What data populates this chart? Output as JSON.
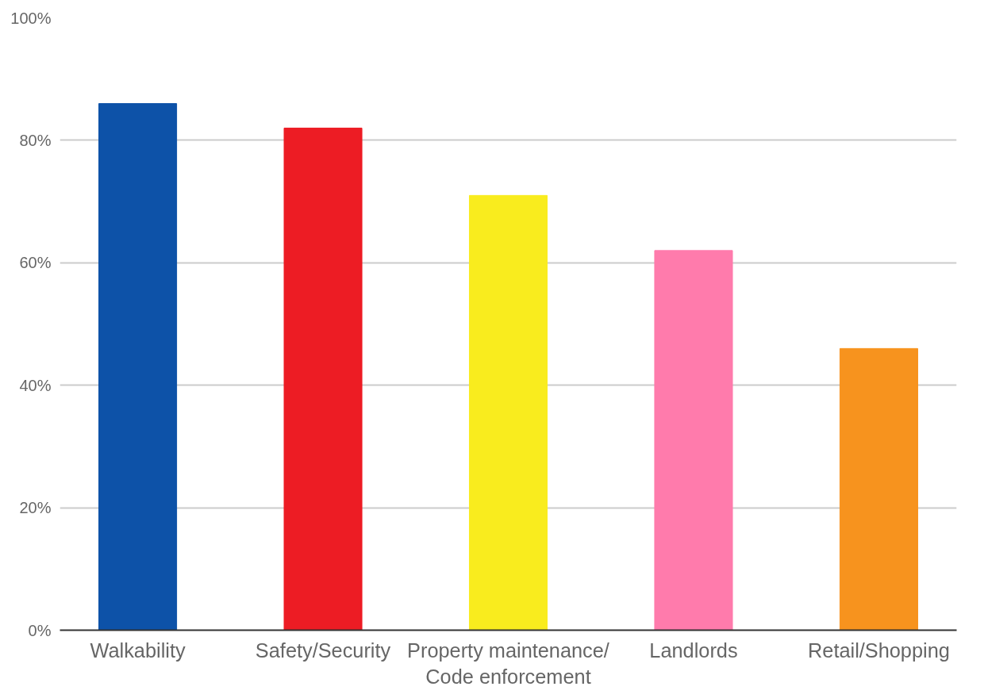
{
  "chart_data": {
    "type": "bar",
    "categories": [
      "Walkability",
      "Safety/Security",
      "Property maintenance/\nCode enforcement",
      "Landlords",
      "Retail/Shopping"
    ],
    "values": [
      86,
      82,
      71,
      62,
      46
    ],
    "colors": [
      "#0d52a8",
      "#ed1c24",
      "#f9ec1e",
      "#ff7bac",
      "#f7931e"
    ],
    "ylim": [
      0,
      100
    ],
    "yticks": [
      {
        "value": 0,
        "label": "0%"
      },
      {
        "value": 20,
        "label": "20%"
      },
      {
        "value": 40,
        "label": "40%"
      },
      {
        "value": 60,
        "label": "60%"
      },
      {
        "value": 80,
        "label": "80%"
      },
      {
        "value": 100,
        "label": "100%"
      }
    ],
    "grid": "y"
  }
}
